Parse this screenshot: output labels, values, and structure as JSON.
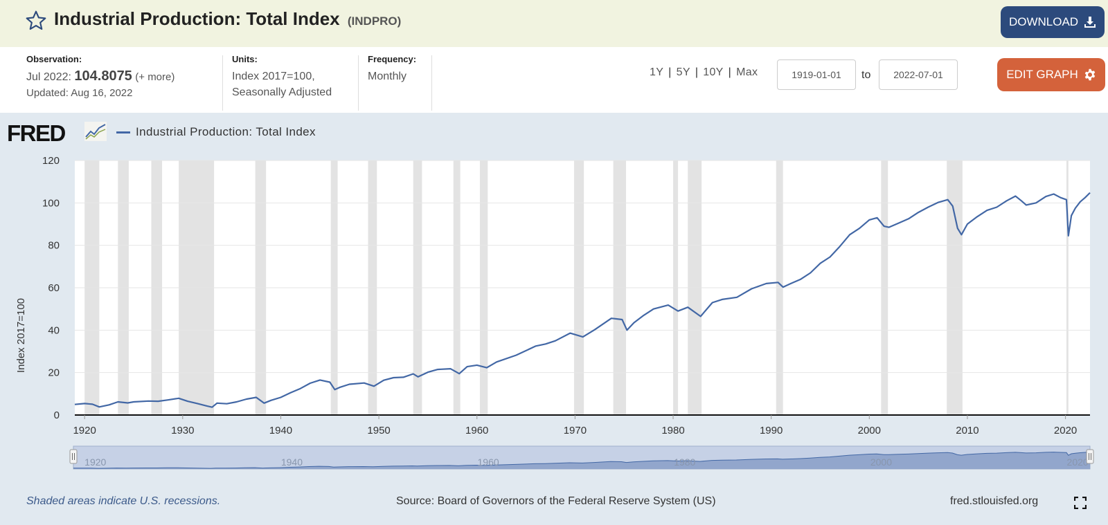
{
  "header": {
    "title": "Industrial Production: Total Index",
    "series_code": "(INDPRO)",
    "download_label": "DOWNLOAD"
  },
  "meta": {
    "observation_label": "Observation:",
    "observation_date": "Jul 2022:",
    "observation_value": "104.8075",
    "observation_more": "(+ more)",
    "updated": "Updated: Aug 16, 2022",
    "units_label": "Units:",
    "units_line1": "Index 2017=100,",
    "units_line2": "Seasonally Adjusted",
    "frequency_label": "Frequency:",
    "frequency_value": "Monthly"
  },
  "controls": {
    "ranges": [
      "1Y",
      "5Y",
      "10Y",
      "Max"
    ],
    "start_date": "1919-01-01",
    "to_label": "to",
    "end_date": "2022-07-01",
    "edit_label": "EDIT GRAPH"
  },
  "branding": {
    "logo": "FRED"
  },
  "footer": {
    "note": "Shaded areas indicate U.S. recessions.",
    "source": "Source: Board of Governors of the Federal Reserve System (US)",
    "url": "fred.stlouisfed.org"
  },
  "colors": {
    "series": "#4267a5",
    "recession": "#e3e3e3",
    "download_button": "#2c4a7c",
    "edit_button": "#d4623b",
    "header_bg": "#f1f3e0",
    "chart_bg": "#e1e9f0"
  },
  "chart_data": {
    "type": "line",
    "title": "",
    "xlabel": "",
    "ylabel": "Index 2017=100",
    "xlim": [
      1919.0,
      2022.5
    ],
    "ylim": [
      0,
      120
    ],
    "yticks": [
      0,
      20,
      40,
      60,
      80,
      100,
      120
    ],
    "xticks": [
      1920,
      1930,
      1940,
      1950,
      1960,
      1970,
      1980,
      1990,
      2000,
      2010,
      2020
    ],
    "grid": true,
    "legend": "top-left",
    "series": [
      {
        "name": "Industrial Production: Total Index",
        "x": [
          1919.0,
          1920.0,
          1920.8,
          1921.5,
          1922.5,
          1923.4,
          1924.4,
          1925.0,
          1926.5,
          1927.5,
          1928.5,
          1929.6,
          1930.5,
          1931.5,
          1932.5,
          1933.0,
          1933.5,
          1934.5,
          1935.5,
          1936.5,
          1937.5,
          1938.3,
          1939.0,
          1940.0,
          1941.0,
          1942.0,
          1943.0,
          1944.0,
          1945.0,
          1945.5,
          1946.0,
          1947.0,
          1948.5,
          1949.5,
          1950.5,
          1951.5,
          1952.5,
          1953.5,
          1954.0,
          1955.0,
          1956.0,
          1957.3,
          1958.2,
          1959.0,
          1960.0,
          1961.0,
          1962.0,
          1964.0,
          1966.0,
          1967.0,
          1968.0,
          1969.5,
          1970.8,
          1972.0,
          1973.7,
          1974.8,
          1975.3,
          1976.0,
          1977.0,
          1978.0,
          1979.5,
          1980.5,
          1981.5,
          1982.8,
          1984.0,
          1985.0,
          1986.5,
          1988.0,
          1989.5,
          1990.7,
          1991.2,
          1992.0,
          1993.0,
          1994.0,
          1995.0,
          1996.0,
          1997.0,
          1998.0,
          1999.0,
          2000.0,
          2000.8,
          2001.5,
          2002.0,
          2003.0,
          2004.0,
          2005.0,
          2006.0,
          2007.0,
          2008.0,
          2008.5,
          2009.0,
          2009.4,
          2010.0,
          2011.0,
          2012.0,
          2013.0,
          2014.0,
          2014.9,
          2015.5,
          2016.0,
          2017.0,
          2018.0,
          2018.8,
          2019.5,
          2020.1,
          2020.3,
          2020.6,
          2021.0,
          2021.5,
          2022.0,
          2022.5
        ],
        "values": [
          5.0,
          5.4,
          5.1,
          3.8,
          4.8,
          6.2,
          5.7,
          6.2,
          6.6,
          6.5,
          7.1,
          7.9,
          6.5,
          5.4,
          4.2,
          3.7,
          5.6,
          5.3,
          6.2,
          7.5,
          8.3,
          5.6,
          6.9,
          8.3,
          10.5,
          12.5,
          15.0,
          16.5,
          15.5,
          12.0,
          13.0,
          14.5,
          15.1,
          13.6,
          16.4,
          17.6,
          17.8,
          19.4,
          18.0,
          20.2,
          21.5,
          21.8,
          19.5,
          22.8,
          23.5,
          22.3,
          25.0,
          28.2,
          32.5,
          33.5,
          35.0,
          38.6,
          36.8,
          40.2,
          45.6,
          45.0,
          40.0,
          43.5,
          47.0,
          50.0,
          51.8,
          49.0,
          50.8,
          46.5,
          53.0,
          54.5,
          55.5,
          59.5,
          62.0,
          62.5,
          60.3,
          62.0,
          64.0,
          67.0,
          71.5,
          74.5,
          79.5,
          85.0,
          88.0,
          92.0,
          93.0,
          89.0,
          88.5,
          90.5,
          92.5,
          95.5,
          98.0,
          100.2,
          101.5,
          98.5,
          88.0,
          85.0,
          90.0,
          93.5,
          96.5,
          98.0,
          101.0,
          103.2,
          101.0,
          99.0,
          100.0,
          103.0,
          104.2,
          102.5,
          101.5,
          84.5,
          94.0,
          97.5,
          100.5,
          102.5,
          104.8
        ]
      }
    ],
    "recessions": [
      [
        1920.0,
        1921.5
      ],
      [
        1923.4,
        1924.5
      ],
      [
        1926.8,
        1927.9
      ],
      [
        1929.6,
        1933.2
      ],
      [
        1937.4,
        1938.5
      ],
      [
        1945.1,
        1945.8
      ],
      [
        1948.9,
        1949.8
      ],
      [
        1953.5,
        1954.4
      ],
      [
        1957.6,
        1958.3
      ],
      [
        1960.3,
        1961.1
      ],
      [
        1969.9,
        1970.9
      ],
      [
        1973.9,
        1975.2
      ],
      [
        1980.0,
        1980.5
      ],
      [
        1981.5,
        1982.9
      ],
      [
        1990.5,
        1991.2
      ],
      [
        2001.2,
        2001.9
      ],
      [
        2007.9,
        2009.5
      ],
      [
        2020.1,
        2020.3
      ]
    ],
    "navigator_labels": [
      "1920",
      "1940",
      "1960",
      "1980",
      "2000",
      "2020"
    ]
  }
}
